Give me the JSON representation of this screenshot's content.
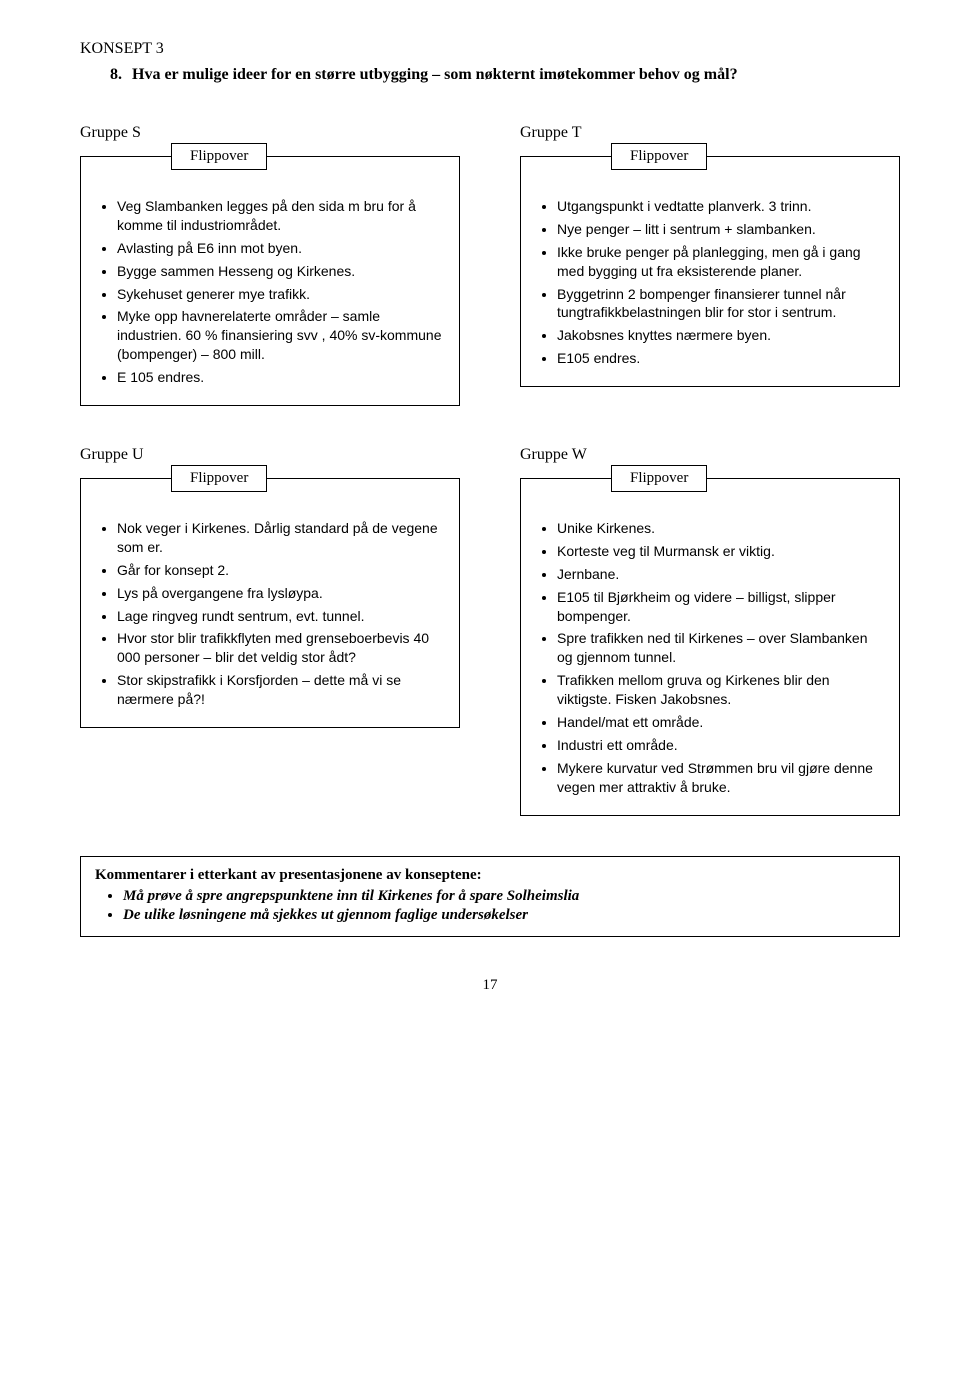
{
  "section_label": "KONSEPT 3",
  "question": {
    "number": "8.",
    "text": "Hva er mulige ideer for en større utbygging – som nøkternt imøtekommer behov og mål?"
  },
  "flippover_label": "Flippover",
  "groups": {
    "S": {
      "label": "Gruppe S",
      "items": [
        "Veg Slambanken legges på den sida m bru for å komme til industriområdet.",
        "Avlasting på E6 inn mot byen.",
        "Bygge sammen Hesseng og Kirkenes.",
        "Sykehuset generer mye trafikk.",
        "Myke opp havnerelaterte områder – samle industrien. 60 % finansiering svv , 40% sv-kommune (bompenger) – 800 mill.",
        "E 105 endres."
      ]
    },
    "T": {
      "label": "Gruppe T",
      "items": [
        "Utgangspunkt i vedtatte planverk. 3 trinn.",
        "Nye penger – litt i sentrum + slambanken.",
        "Ikke bruke penger på planlegging, men gå i gang med bygging ut fra eksisterende planer.",
        "Byggetrinn 2 bompenger finansierer tunnel når tungtrafikkbelastningen blir for stor i sentrum.",
        "Jakobsnes knyttes nærmere byen.",
        "E105 endres."
      ]
    },
    "U": {
      "label": "Gruppe U",
      "items": [
        "Nok veger i Kirkenes. Dårlig standard på de vegene som er.",
        "Går for konsept 2.",
        "Lys på overgangene fra lysløypa.",
        "Lage ringveg rundt sentrum, evt. tunnel.",
        "Hvor stor blir trafikkflyten med grenseboerbevis 40 000 personer – blir det veldig stor ådt?",
        "Stor skipstrafikk i Korsfjorden – dette må vi se nærmere på?!"
      ]
    },
    "W": {
      "label": "Gruppe W",
      "items": [
        "Unike Kirkenes.",
        "Korteste veg til Murmansk er viktig.",
        "Jernbane.",
        "E105 til Bjørkheim og videre – billigst, slipper bompenger.",
        "Spre trafikken ned til Kirkenes – over Slambanken og gjennom tunnel.",
        "Trafikken mellom gruva og Kirkenes blir den viktigste. Fisken Jakobsnes.",
        "Handel/mat ett område.",
        "Industri ett område.",
        "Mykere kurvatur ved Strømmen bru vil gjøre denne vegen mer attraktiv å bruke."
      ]
    }
  },
  "comments": {
    "title": "Kommentarer i etterkant av presentasjonene av konseptene:",
    "items": [
      "Må prøve å spre angrepspunktene inn til Kirkenes for å spare Solheimslia",
      "De ulike løsningene må sjekkes ut gjennom faglige undersøkelser"
    ]
  },
  "page_number": "17"
}
